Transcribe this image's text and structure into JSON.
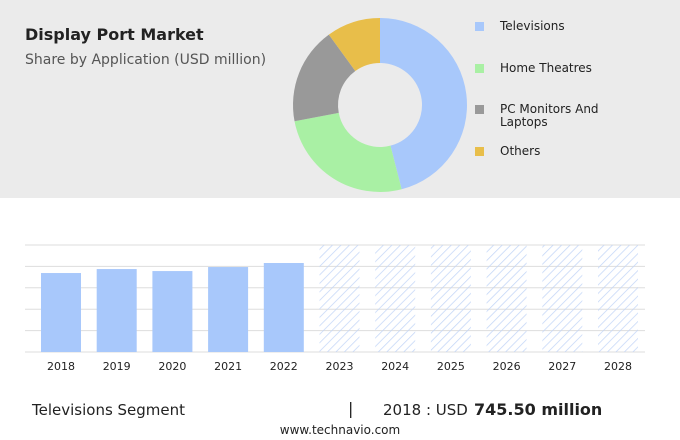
{
  "title": "Display Port Market",
  "subtitle": "Share by Application (USD million)",
  "chart_data": [
    {
      "type": "donut",
      "series": [
        {
          "name": "Televisions",
          "color": "#a8c8fb",
          "values": [
            46
          ]
        },
        {
          "name": "Home Theatres",
          "color": "#a9f0a4",
          "values": [
            26
          ]
        },
        {
          "name": "PC Monitors And Laptops",
          "color": "#999999",
          "values": [
            18
          ]
        },
        {
          "name": "Others",
          "color": "#e8be4a",
          "values": [
            10
          ]
        }
      ]
    },
    {
      "type": "bar",
      "categories": [
        "2018",
        "2019",
        "2020",
        "2021",
        "2022",
        "2023",
        "2024",
        "2025",
        "2026",
        "2027",
        "2028"
      ],
      "values": [
        745.5,
        783,
        764,
        802,
        840,
        null,
        null,
        null,
        null,
        null,
        null
      ],
      "color": "#a8c8fb",
      "ylim": [
        0,
        1010
      ]
    }
  ],
  "footer": {
    "segment": "Televisions Segment",
    "separator": "|",
    "year_label": "2018 : USD",
    "value_label": "745.50 million",
    "source": "www.technavio.com"
  }
}
